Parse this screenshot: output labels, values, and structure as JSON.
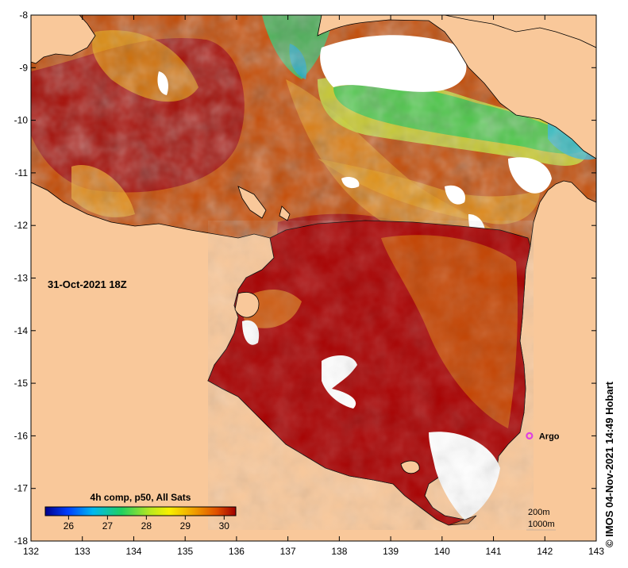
{
  "map": {
    "lon_ticks": [
      "132",
      "133",
      "134",
      "135",
      "136",
      "137",
      "138",
      "139",
      "140",
      "141",
      "142",
      "143"
    ],
    "lat_ticks": [
      "-8",
      "-9",
      "-10",
      "-11",
      "-12",
      "-13",
      "-14",
      "-15",
      "-16",
      "-17",
      "-18"
    ],
    "lon_range": [
      132,
      143
    ],
    "lat_range": [
      -18,
      -8
    ],
    "date_label": "31-Oct-2021 18Z",
    "argo": {
      "label": "Argo",
      "lon": 141.7,
      "lat": -16.0
    },
    "colorbar": {
      "title": "4h comp, p50, All Sats",
      "ticks": [
        "26",
        "27",
        "28",
        "29",
        "30"
      ],
      "range": [
        25.4,
        30.3
      ]
    },
    "scale": {
      "line1": "200m",
      "line2": "1000m"
    },
    "credit": "© IMOS 04-Nov-2021 14:49 Hobart",
    "colors": {
      "land": "#f9c89a",
      "sst_warm": "#a00000",
      "sst_orange": "#d86800",
      "sst_yellow": "#f0b000",
      "sst_green": "#30c840",
      "argo": "#e040e0"
    }
  }
}
